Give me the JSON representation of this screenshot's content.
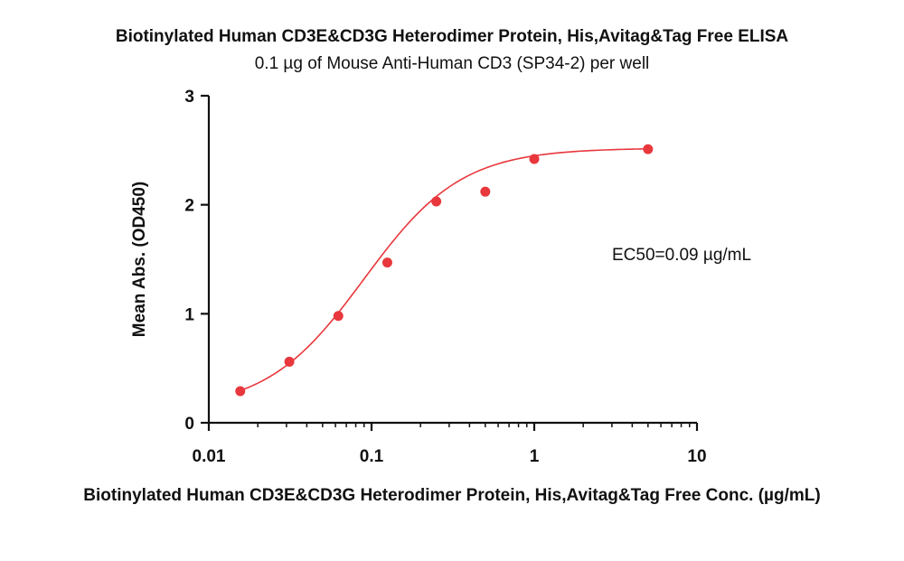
{
  "chart_data": {
    "type": "scatter",
    "title": "Biotinylated Human CD3E&CD3G Heterodimer Protein, His,Avitag&Tag Free ELISA",
    "subtitle": "0.1 µg of Mouse Anti-Human CD3 (SP34-2) per well",
    "xlabel": "Biotinylated Human CD3E&CD3G Heterodimer Protein, His,Avitag&Tag Free Conc. (µg/mL)",
    "ylabel": "Mean Abs. (OD450)",
    "x_scale": "log",
    "xlim": [
      0.01,
      10
    ],
    "ylim": [
      0,
      3
    ],
    "x_ticks": [
      "0.01",
      "0.1",
      "1",
      "10"
    ],
    "y_ticks": [
      "0",
      "1",
      "2",
      "3"
    ],
    "grid": false,
    "annotation": "EC50=0.09 µg/mL",
    "color": "#e8383d",
    "series": [
      {
        "x": [
          0.0156,
          0.03125,
          0.0625,
          0.125,
          0.25,
          0.5,
          1,
          5
        ],
        "y": [
          0.29,
          0.56,
          0.98,
          1.47,
          2.03,
          2.12,
          2.42,
          2.51
        ]
      }
    ],
    "fit": {
      "bottom": 0.12,
      "top": 2.52,
      "ec50": 0.09,
      "hill": 1.45
    }
  }
}
